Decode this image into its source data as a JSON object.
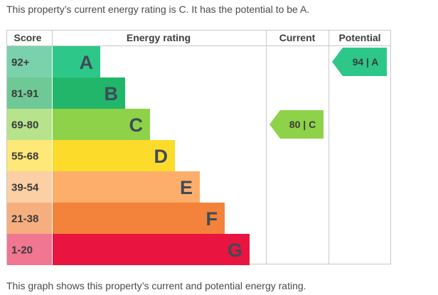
{
  "intro_text": "This property’s current energy rating is C. It has the potential to be A.",
  "footer_text": "This graph shows this property’s current and potential energy rating.",
  "table": {
    "headers": {
      "score": "Score",
      "energy_rating": "Energy rating",
      "current": "Current",
      "potential": "Potential"
    }
  },
  "chart_data": {
    "type": "bar",
    "bands": [
      {
        "score": "92+",
        "letter": "A",
        "color": "#2dc889",
        "score_bg": "#7ad2ac"
      },
      {
        "score": "81-91",
        "letter": "B",
        "color": "#21b66a",
        "score_bg": "#6fc996"
      },
      {
        "score": "69-80",
        "letter": "C",
        "color": "#8dd249",
        "score_bg": "#b6e38b"
      },
      {
        "score": "55-68",
        "letter": "D",
        "color": "#fddb2b",
        "score_bg": "#fde878"
      },
      {
        "score": "39-54",
        "letter": "E",
        "color": "#fdae6a",
        "score_bg": "#fdcfa4"
      },
      {
        "score": "21-38",
        "letter": "F",
        "color": "#f3823a",
        "score_bg": "#f6ae7e"
      },
      {
        "score": "1-20",
        "letter": "G",
        "color": "#e9143f",
        "score_bg": "#f07691"
      }
    ],
    "current": {
      "value": 80,
      "band": "C",
      "label": "80 | C",
      "color": "#8dd249"
    },
    "potential": {
      "value": 94,
      "band": "A",
      "label": "94 | A",
      "color": "#2dc889"
    }
  }
}
